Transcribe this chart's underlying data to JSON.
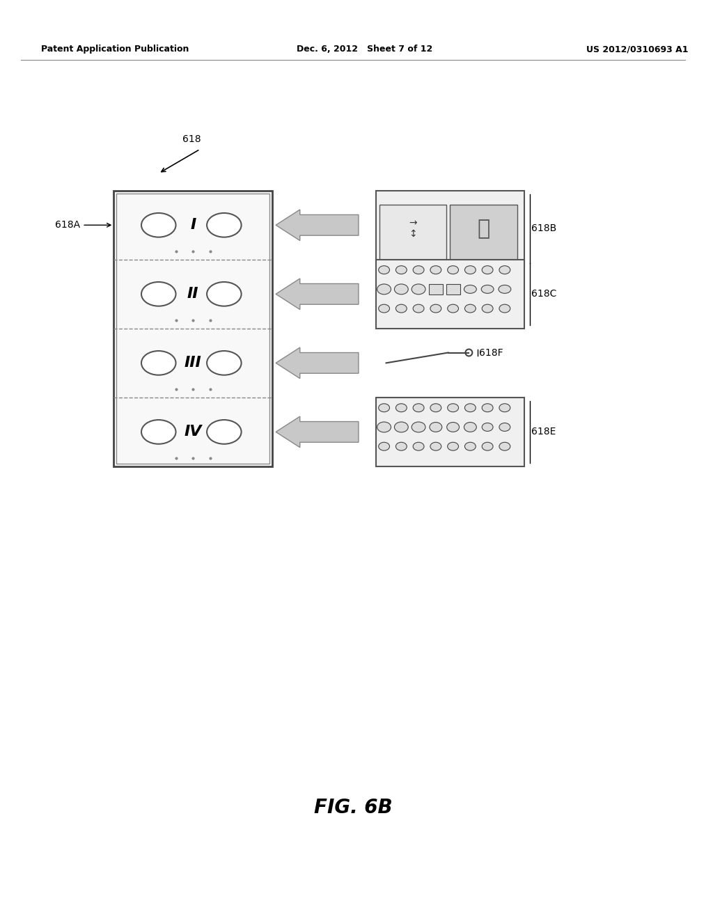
{
  "bg_color": "#ffffff",
  "header_left": "Patent Application Publication",
  "header_mid": "Dec. 6, 2012   Sheet 7 of 12",
  "header_right": "US 2012/0310693 A1",
  "figure_label": "FIG. 6B",
  "label_618": "618",
  "label_618A": "618A",
  "label_618B": "618B",
  "label_618C": "618C",
  "label_618F": "618F",
  "label_618E": "618E",
  "roman_numerals": [
    "I",
    "II",
    "III",
    "IV"
  ],
  "line_color": "#555555",
  "arrow_color": "#aaaaaa",
  "text_color": "#000000",
  "box_color": "#cccccc"
}
